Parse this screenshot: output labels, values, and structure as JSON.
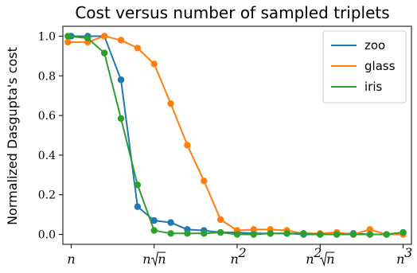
{
  "chart_data": {
    "type": "line",
    "title": "Cost versus number of sampled triplets",
    "xlabel": "",
    "ylabel": "Normalized Dasgupta's cost",
    "x_scale": "log",
    "x_unit": "n^k",
    "x": [
      1.0,
      1.1,
      1.2,
      1.3,
      1.4,
      1.5,
      1.6,
      1.7,
      1.8,
      1.9,
      2.0,
      2.1,
      2.2,
      2.3,
      2.4,
      2.5,
      2.6,
      2.7,
      2.8,
      2.9,
      3.0
    ],
    "xlim": [
      0.95,
      3.05
    ],
    "ylim": [
      -0.05,
      1.05
    ],
    "xticks": [
      {
        "value": 1.0,
        "base": "n",
        "sup": "",
        "root": ""
      },
      {
        "value": 1.5,
        "base": "n",
        "sup": "",
        "root": "n"
      },
      {
        "value": 2.0,
        "base": "n",
        "sup": "2",
        "root": ""
      },
      {
        "value": 2.5,
        "base": "n",
        "sup": "2",
        "root": "n"
      },
      {
        "value": 3.0,
        "base": "n",
        "sup": "3",
        "root": ""
      }
    ],
    "yticks": [
      0.0,
      0.2,
      0.4,
      0.6,
      0.8,
      1.0
    ],
    "ytick_labels": [
      "0.0",
      "0.2",
      "0.4",
      "0.6",
      "0.8",
      "1.0"
    ],
    "grid": false,
    "legend_position": "top-right",
    "series": [
      {
        "name": "zoo",
        "color": "#1f77b4",
        "x": [
          1.0,
          1.1,
          1.2,
          1.3,
          1.4,
          1.5,
          1.6,
          1.7,
          1.8,
          1.9,
          2.0,
          2.1,
          2.2,
          2.3,
          2.4,
          2.5,
          2.6,
          2.7,
          2.8,
          2.9,
          3.0
        ],
        "values": [
          1.0,
          1.0,
          1.0,
          0.78,
          0.14,
          0.07,
          0.06,
          0.025,
          0.02,
          0.01,
          0.01,
          0.005,
          0.005,
          0.005,
          0.0,
          0.0,
          0.0,
          0.005,
          0.0,
          0.0,
          0.01
        ]
      },
      {
        "name": "glass",
        "color": "#ff7f0e",
        "x": [
          0.98,
          1.1,
          1.2,
          1.3,
          1.4,
          1.5,
          1.6,
          1.7,
          1.8,
          1.9,
          2.0,
          2.1,
          2.2,
          2.3,
          2.4,
          2.5,
          2.6,
          2.7,
          2.8,
          2.9,
          3.0
        ],
        "values": [
          0.97,
          0.97,
          1.0,
          0.98,
          0.94,
          0.86,
          0.66,
          0.45,
          0.27,
          0.075,
          0.02,
          0.025,
          0.025,
          0.02,
          0.005,
          0.005,
          0.01,
          0.0,
          0.025,
          0.0,
          0.0
        ]
      },
      {
        "name": "iris",
        "color": "#2ca02c",
        "x": [
          0.98,
          1.1,
          1.2,
          1.3,
          1.4,
          1.5,
          1.6,
          1.7,
          1.8,
          1.9,
          2.0,
          2.1,
          2.2,
          2.3,
          2.4,
          2.5,
          2.6,
          2.7,
          2.8,
          2.9,
          3.0
        ],
        "values": [
          1.0,
          0.99,
          0.915,
          0.585,
          0.25,
          0.02,
          0.005,
          0.005,
          0.005,
          0.01,
          0.0,
          0.0,
          0.005,
          0.005,
          0.005,
          0.0,
          0.0,
          0.0,
          0.0,
          0.0,
          0.01
        ]
      }
    ]
  }
}
